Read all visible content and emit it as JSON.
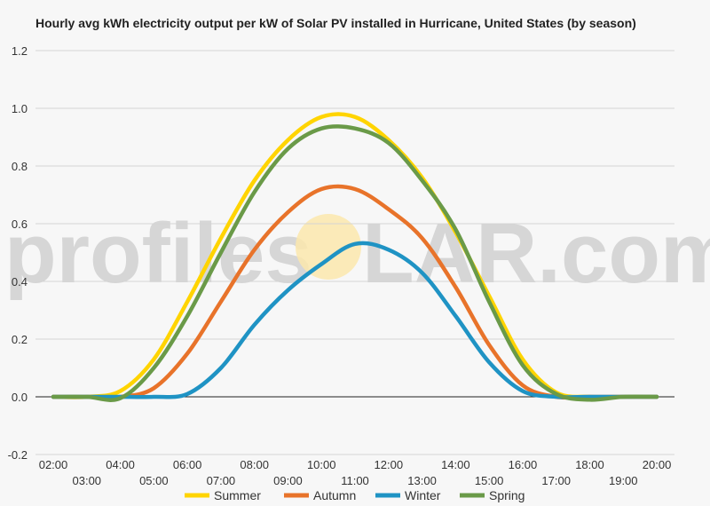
{
  "chart_data": {
    "type": "line",
    "title": "Hourly avg kWh electricity output per kW of Solar PV installed in Hurricane, United States (by season)",
    "xlabel": "",
    "ylabel": "",
    "ylim": [
      -0.2,
      1.2
    ],
    "yticks": [
      "-0.2",
      "0.0",
      "0.2",
      "0.4",
      "0.6",
      "0.8",
      "1.0",
      "1.2"
    ],
    "x": [
      "02:00",
      "03:00",
      "04:00",
      "05:00",
      "06:00",
      "07:00",
      "08:00",
      "09:00",
      "10:00",
      "11:00",
      "12:00",
      "13:00",
      "14:00",
      "15:00",
      "16:00",
      "17:00",
      "18:00",
      "19:00",
      "20:00"
    ],
    "grid": true,
    "legend": "bottom",
    "series": [
      {
        "name": "Summer",
        "color": "#ffd400",
        "values": [
          0,
          0,
          0.02,
          0.13,
          0.33,
          0.55,
          0.75,
          0.89,
          0.97,
          0.97,
          0.89,
          0.76,
          0.57,
          0.35,
          0.13,
          0.015,
          0,
          0,
          0
        ]
      },
      {
        "name": "Autumn",
        "color": "#e8732a",
        "values": [
          0,
          0,
          0,
          0.03,
          0.15,
          0.33,
          0.51,
          0.64,
          0.72,
          0.72,
          0.65,
          0.55,
          0.38,
          0.18,
          0.04,
          0,
          0,
          0,
          0
        ]
      },
      {
        "name": "Winter",
        "color": "#1f93c4",
        "values": [
          0,
          0,
          0,
          0,
          0.01,
          0.1,
          0.25,
          0.37,
          0.46,
          0.53,
          0.51,
          0.43,
          0.28,
          0.12,
          0.02,
          0,
          0,
          0,
          0
        ]
      },
      {
        "name": "Spring",
        "color": "#6a9a48",
        "values": [
          0,
          0,
          -0.005,
          0.1,
          0.28,
          0.5,
          0.71,
          0.86,
          0.93,
          0.93,
          0.88,
          0.75,
          0.58,
          0.33,
          0.11,
          0.01,
          -0.01,
          0,
          0
        ]
      }
    ]
  },
  "watermark": {
    "left": "profiles",
    "right": "LAR.com"
  }
}
